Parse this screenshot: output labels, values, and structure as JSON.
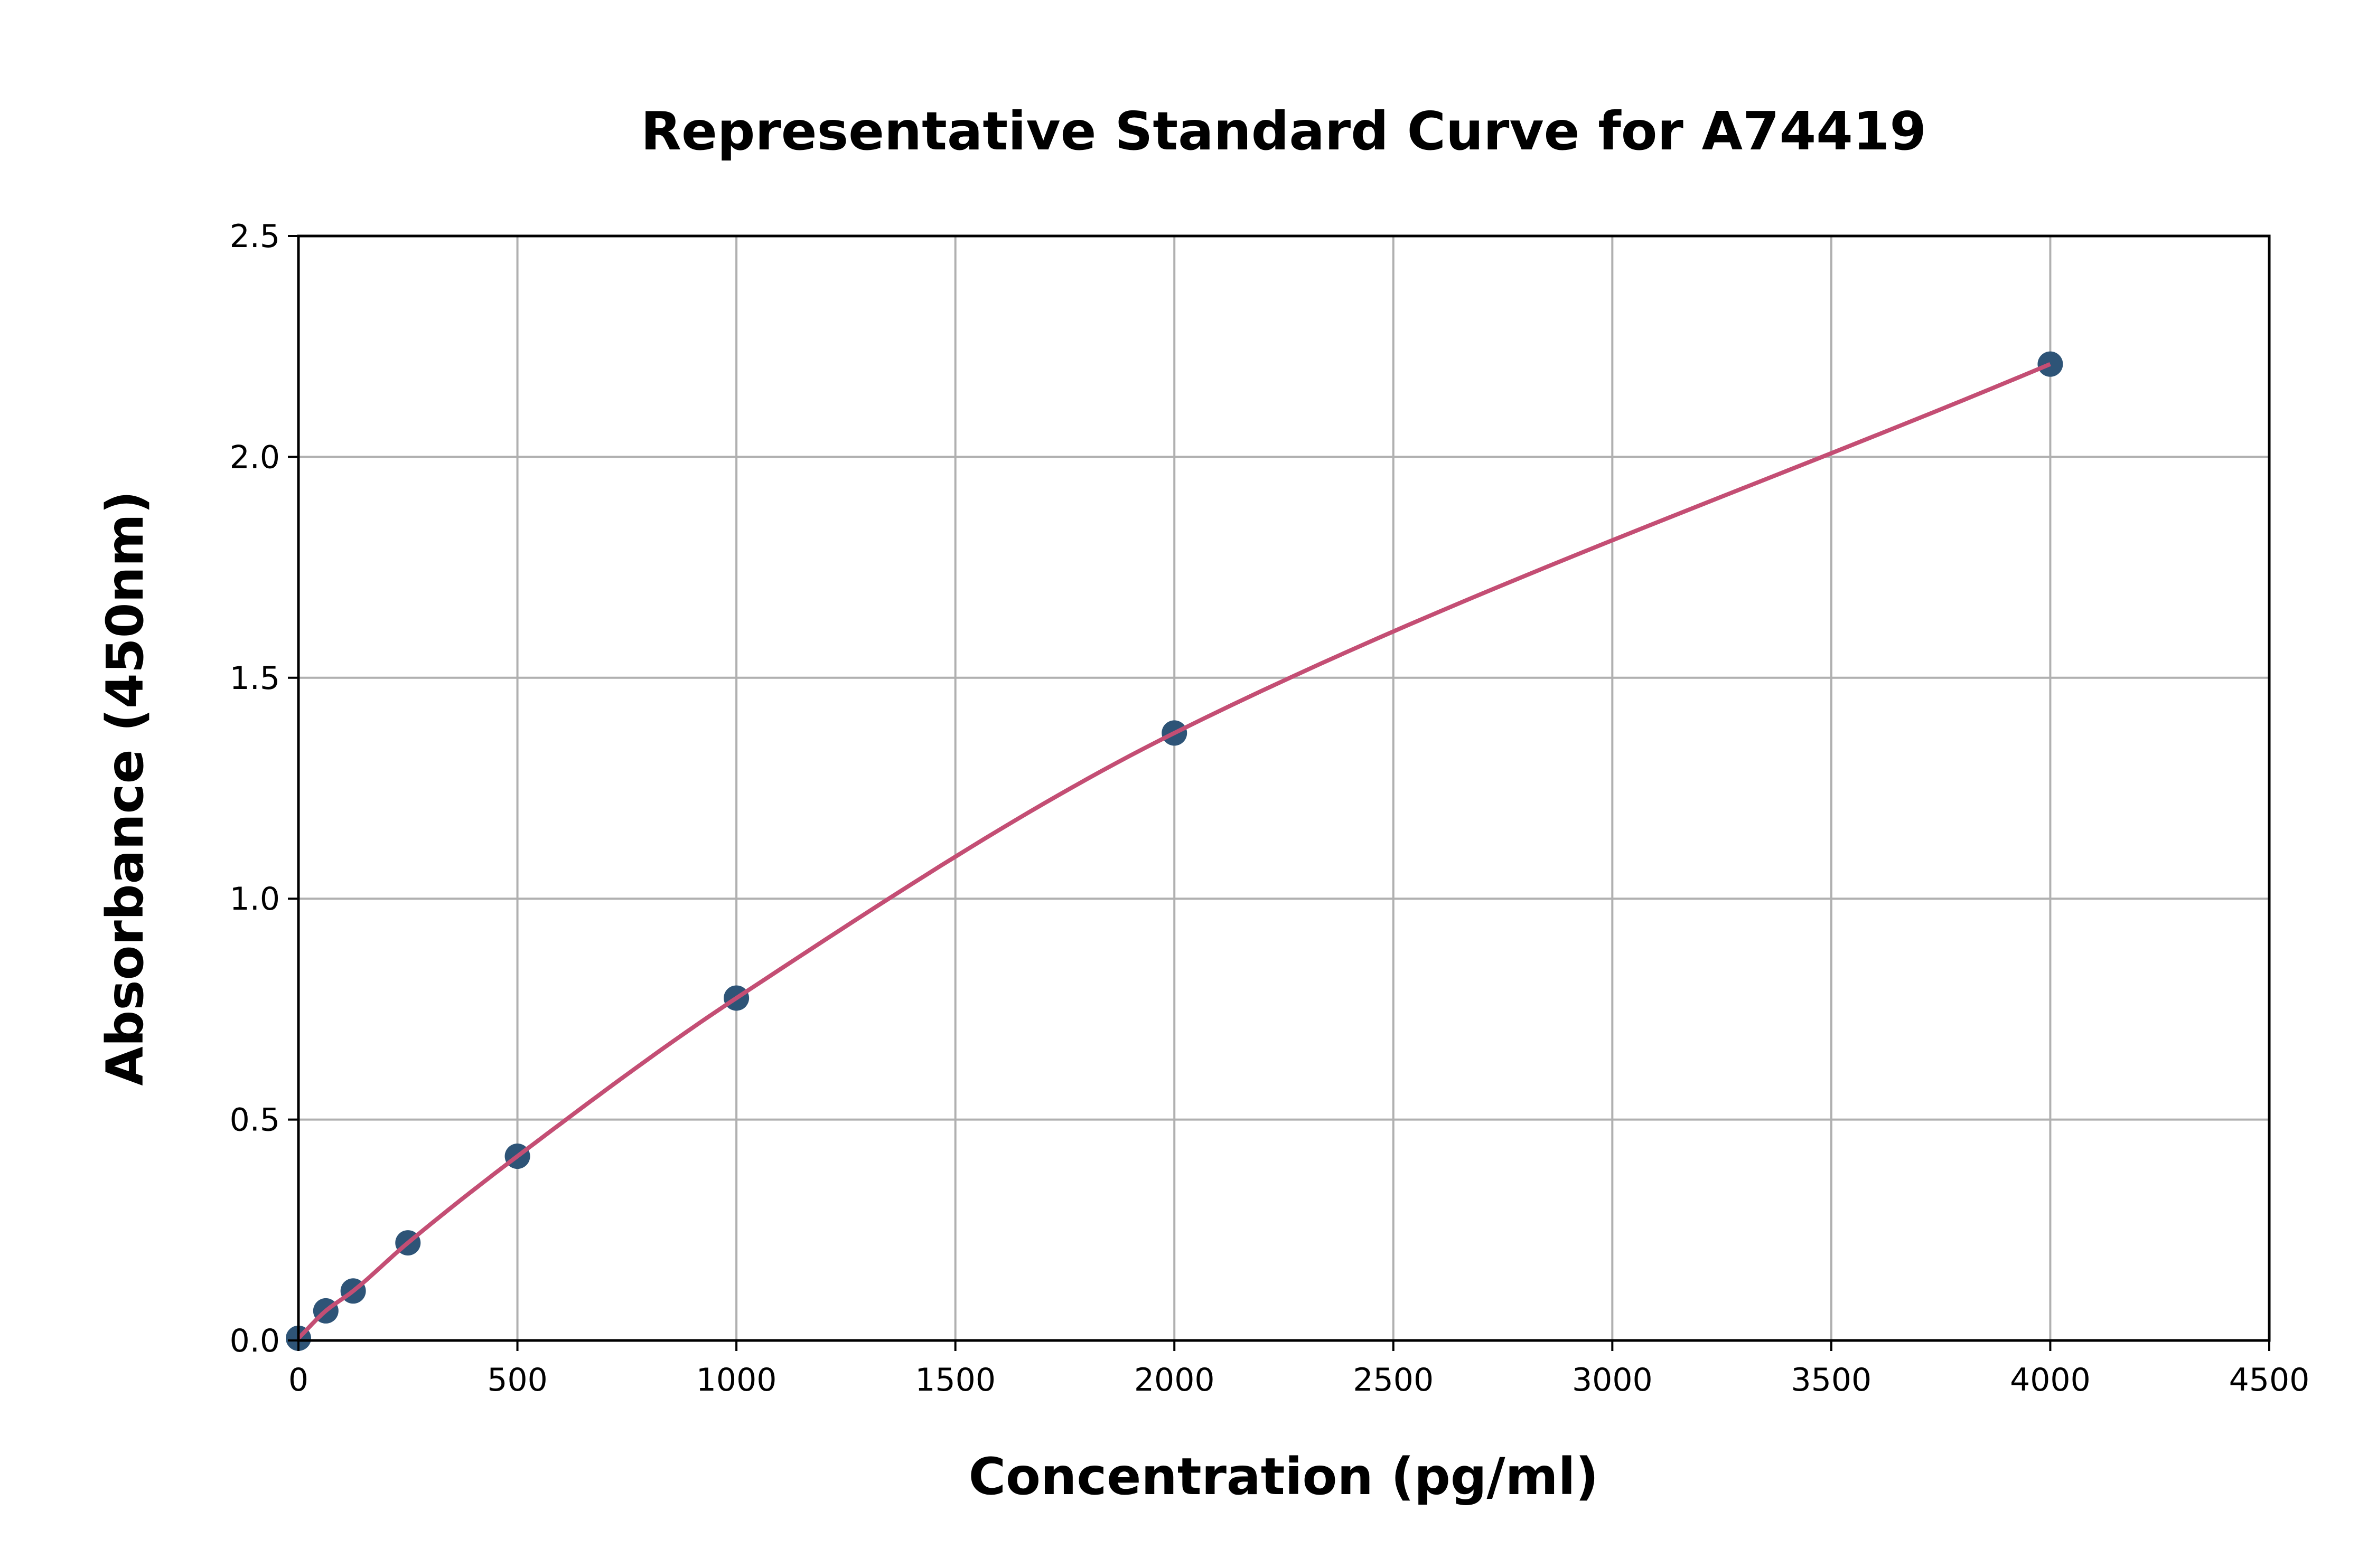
{
  "chart_data": {
    "type": "scatter",
    "title": "Representative Standard Curve for A74419",
    "xlabel": "Concentration (pg/ml)",
    "ylabel": "Absorbance (450nm)",
    "xlim": [
      0,
      4500
    ],
    "ylim": [
      0,
      2.5
    ],
    "xticks": [
      "0",
      "500",
      "1000",
      "1500",
      "2000",
      "2500",
      "3000",
      "3500",
      "4000",
      "4500"
    ],
    "yticks": [
      "0.0",
      "0.5",
      "1.0",
      "1.5",
      "2.0",
      "2.5"
    ],
    "grid": true,
    "points": {
      "x": [
        0,
        62.5,
        125,
        250,
        500,
        1000,
        2000,
        4000
      ],
      "y": [
        0.005,
        0.067,
        0.112,
        0.221,
        0.417,
        0.775,
        1.375,
        2.21
      ]
    },
    "fit_curve": true,
    "colors": {
      "points": "#2e5477",
      "curve": "#c44e74",
      "grid": "#b0b0b0"
    }
  }
}
